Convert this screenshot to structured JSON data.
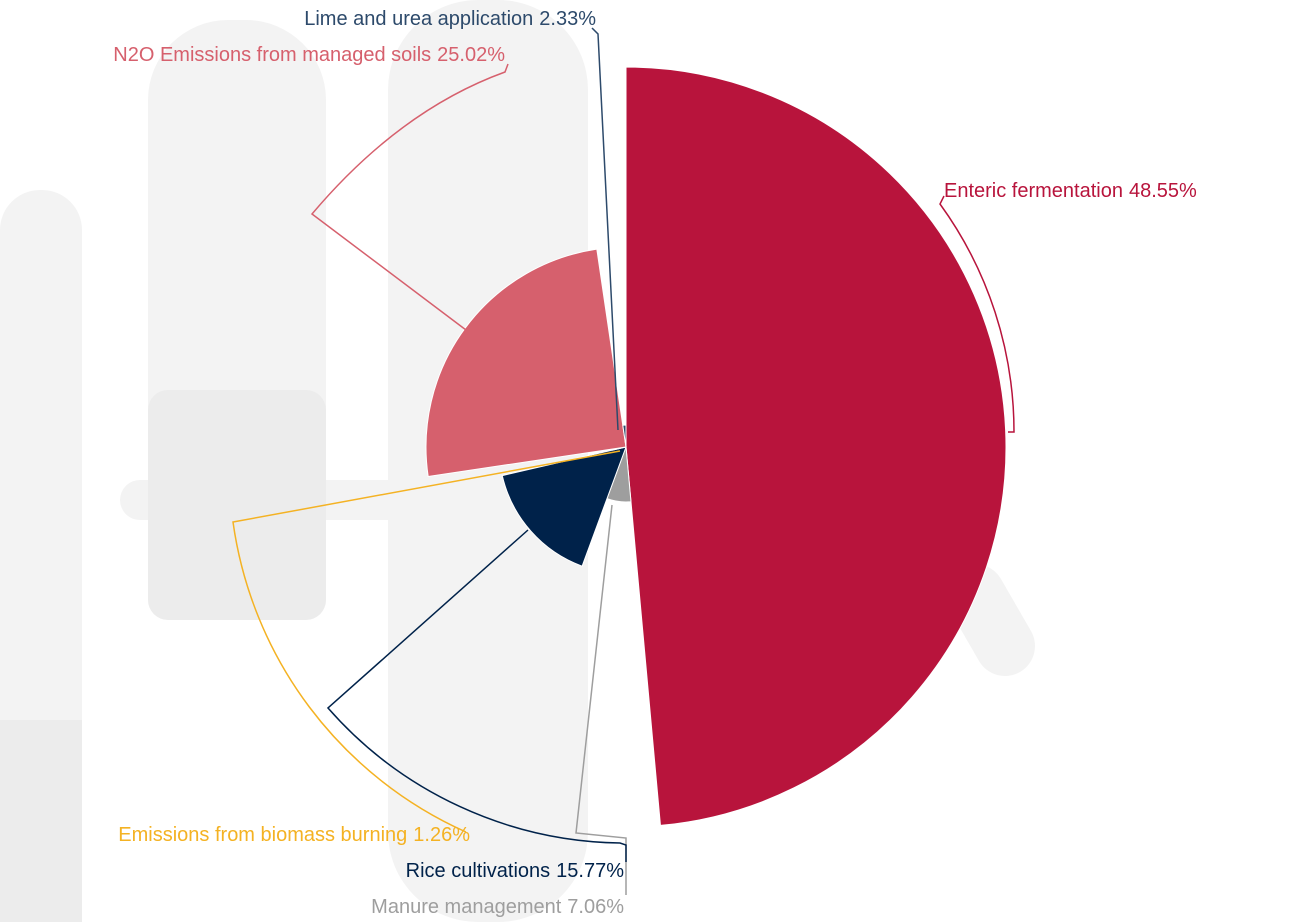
{
  "chart_data": {
    "type": "variablepie",
    "categories": [
      "Enteric fermentation",
      "Manure management",
      "Rice cultivations",
      "Emissions from biomass burning",
      "N2O Emissions from managed soils",
      "Lime and urea application"
    ],
    "values": [
      48.55,
      7.06,
      15.77,
      1.26,
      25.02,
      2.33
    ],
    "value_labels": [
      "48.55%",
      "7.06%",
      "15.77%",
      "1.26%",
      "25.02%",
      "2.33%"
    ],
    "colors": [
      "#b8143c",
      "#9e9e9e",
      "#00224a",
      "#f4b223",
      "#d6606d",
      "#2d4a6b"
    ]
  }
}
